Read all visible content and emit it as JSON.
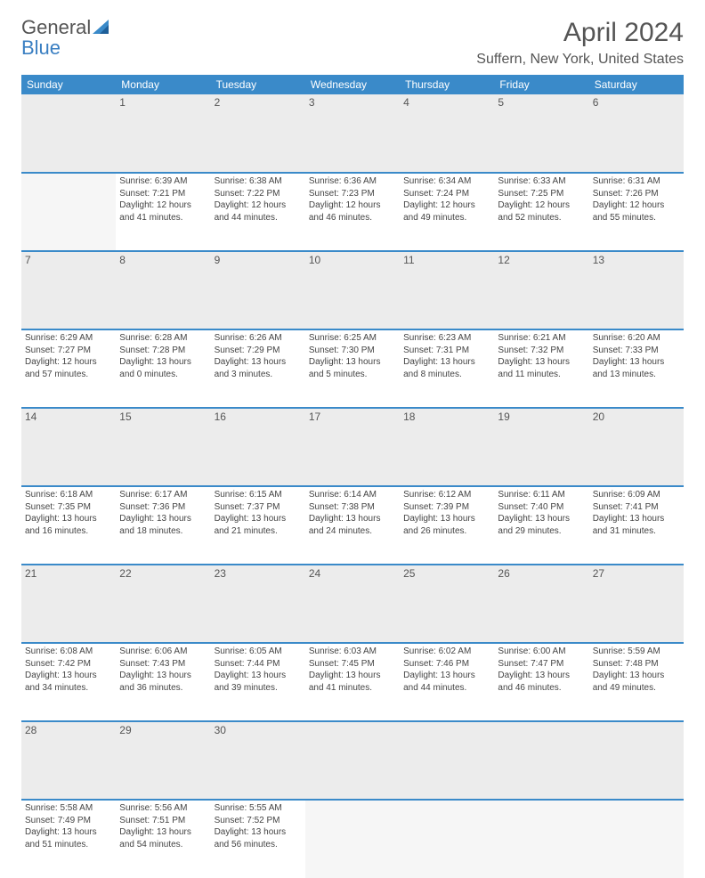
{
  "brand": {
    "general": "General",
    "blue": "Blue",
    "logo_color": "#3a8ac9"
  },
  "title": "April 2024",
  "location": "Suffern, New York, United States",
  "colors": {
    "header_bg": "#3a8ac9",
    "header_text": "#ffffff",
    "daynum_bg": "#ececec",
    "text": "#444444",
    "rule": "#3a8ac9"
  },
  "weekdays": [
    "Sunday",
    "Monday",
    "Tuesday",
    "Wednesday",
    "Thursday",
    "Friday",
    "Saturday"
  ],
  "cells": [
    {
      "day": "",
      "lines": []
    },
    {
      "day": "1",
      "lines": [
        "Sunrise: 6:39 AM",
        "Sunset: 7:21 PM",
        "Daylight: 12 hours and 41 minutes."
      ]
    },
    {
      "day": "2",
      "lines": [
        "Sunrise: 6:38 AM",
        "Sunset: 7:22 PM",
        "Daylight: 12 hours and 44 minutes."
      ]
    },
    {
      "day": "3",
      "lines": [
        "Sunrise: 6:36 AM",
        "Sunset: 7:23 PM",
        "Daylight: 12 hours and 46 minutes."
      ]
    },
    {
      "day": "4",
      "lines": [
        "Sunrise: 6:34 AM",
        "Sunset: 7:24 PM",
        "Daylight: 12 hours and 49 minutes."
      ]
    },
    {
      "day": "5",
      "lines": [
        "Sunrise: 6:33 AM",
        "Sunset: 7:25 PM",
        "Daylight: 12 hours and 52 minutes."
      ]
    },
    {
      "day": "6",
      "lines": [
        "Sunrise: 6:31 AM",
        "Sunset: 7:26 PM",
        "Daylight: 12 hours and 55 minutes."
      ]
    },
    {
      "day": "7",
      "lines": [
        "Sunrise: 6:29 AM",
        "Sunset: 7:27 PM",
        "Daylight: 12 hours and 57 minutes."
      ]
    },
    {
      "day": "8",
      "lines": [
        "Sunrise: 6:28 AM",
        "Sunset: 7:28 PM",
        "Daylight: 13 hours and 0 minutes."
      ]
    },
    {
      "day": "9",
      "lines": [
        "Sunrise: 6:26 AM",
        "Sunset: 7:29 PM",
        "Daylight: 13 hours and 3 minutes."
      ]
    },
    {
      "day": "10",
      "lines": [
        "Sunrise: 6:25 AM",
        "Sunset: 7:30 PM",
        "Daylight: 13 hours and 5 minutes."
      ]
    },
    {
      "day": "11",
      "lines": [
        "Sunrise: 6:23 AM",
        "Sunset: 7:31 PM",
        "Daylight: 13 hours and 8 minutes."
      ]
    },
    {
      "day": "12",
      "lines": [
        "Sunrise: 6:21 AM",
        "Sunset: 7:32 PM",
        "Daylight: 13 hours and 11 minutes."
      ]
    },
    {
      "day": "13",
      "lines": [
        "Sunrise: 6:20 AM",
        "Sunset: 7:33 PM",
        "Daylight: 13 hours and 13 minutes."
      ]
    },
    {
      "day": "14",
      "lines": [
        "Sunrise: 6:18 AM",
        "Sunset: 7:35 PM",
        "Daylight: 13 hours and 16 minutes."
      ]
    },
    {
      "day": "15",
      "lines": [
        "Sunrise: 6:17 AM",
        "Sunset: 7:36 PM",
        "Daylight: 13 hours and 18 minutes."
      ]
    },
    {
      "day": "16",
      "lines": [
        "Sunrise: 6:15 AM",
        "Sunset: 7:37 PM",
        "Daylight: 13 hours and 21 minutes."
      ]
    },
    {
      "day": "17",
      "lines": [
        "Sunrise: 6:14 AM",
        "Sunset: 7:38 PM",
        "Daylight: 13 hours and 24 minutes."
      ]
    },
    {
      "day": "18",
      "lines": [
        "Sunrise: 6:12 AM",
        "Sunset: 7:39 PM",
        "Daylight: 13 hours and 26 minutes."
      ]
    },
    {
      "day": "19",
      "lines": [
        "Sunrise: 6:11 AM",
        "Sunset: 7:40 PM",
        "Daylight: 13 hours and 29 minutes."
      ]
    },
    {
      "day": "20",
      "lines": [
        "Sunrise: 6:09 AM",
        "Sunset: 7:41 PM",
        "Daylight: 13 hours and 31 minutes."
      ]
    },
    {
      "day": "21",
      "lines": [
        "Sunrise: 6:08 AM",
        "Sunset: 7:42 PM",
        "Daylight: 13 hours and 34 minutes."
      ]
    },
    {
      "day": "22",
      "lines": [
        "Sunrise: 6:06 AM",
        "Sunset: 7:43 PM",
        "Daylight: 13 hours and 36 minutes."
      ]
    },
    {
      "day": "23",
      "lines": [
        "Sunrise: 6:05 AM",
        "Sunset: 7:44 PM",
        "Daylight: 13 hours and 39 minutes."
      ]
    },
    {
      "day": "24",
      "lines": [
        "Sunrise: 6:03 AM",
        "Sunset: 7:45 PM",
        "Daylight: 13 hours and 41 minutes."
      ]
    },
    {
      "day": "25",
      "lines": [
        "Sunrise: 6:02 AM",
        "Sunset: 7:46 PM",
        "Daylight: 13 hours and 44 minutes."
      ]
    },
    {
      "day": "26",
      "lines": [
        "Sunrise: 6:00 AM",
        "Sunset: 7:47 PM",
        "Daylight: 13 hours and 46 minutes."
      ]
    },
    {
      "day": "27",
      "lines": [
        "Sunrise: 5:59 AM",
        "Sunset: 7:48 PM",
        "Daylight: 13 hours and 49 minutes."
      ]
    },
    {
      "day": "28",
      "lines": [
        "Sunrise: 5:58 AM",
        "Sunset: 7:49 PM",
        "Daylight: 13 hours and 51 minutes."
      ]
    },
    {
      "day": "29",
      "lines": [
        "Sunrise: 5:56 AM",
        "Sunset: 7:51 PM",
        "Daylight: 13 hours and 54 minutes."
      ]
    },
    {
      "day": "30",
      "lines": [
        "Sunrise: 5:55 AM",
        "Sunset: 7:52 PM",
        "Daylight: 13 hours and 56 minutes."
      ]
    },
    {
      "day": "",
      "lines": []
    },
    {
      "day": "",
      "lines": []
    },
    {
      "day": "",
      "lines": []
    },
    {
      "day": "",
      "lines": []
    }
  ]
}
